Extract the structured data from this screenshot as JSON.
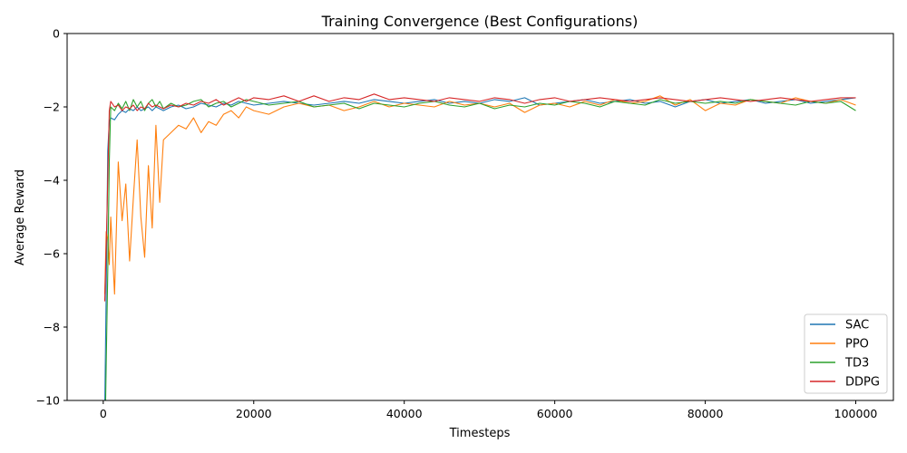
{
  "chart_data": {
    "type": "line",
    "title": "Training Convergence (Best Configurations)",
    "xlabel": "Timesteps",
    "ylabel": "Average Reward",
    "xlim": [
      -4800,
      105000
    ],
    "ylim": [
      -10,
      0
    ],
    "xticks": [
      0,
      20000,
      40000,
      60000,
      80000,
      100000
    ],
    "yticks": [
      -10,
      -8,
      -6,
      -4,
      -2,
      0
    ],
    "grid": false,
    "legend": "lower-right",
    "x": [
      200,
      400,
      600,
      800,
      1000,
      1500,
      2000,
      2500,
      3000,
      3500,
      4000,
      4500,
      5000,
      5500,
      6000,
      6500,
      7000,
      7500,
      8000,
      9000,
      10000,
      11000,
      12000,
      13000,
      14000,
      15000,
      16000,
      17000,
      18000,
      19000,
      20000,
      22000,
      24000,
      26000,
      28000,
      30000,
      32000,
      34000,
      36000,
      38000,
      40000,
      42000,
      44000,
      46000,
      48000,
      50000,
      52000,
      54000,
      56000,
      58000,
      60000,
      62000,
      64000,
      66000,
      68000,
      70000,
      72000,
      74000,
      76000,
      78000,
      80000,
      82000,
      84000,
      86000,
      88000,
      90000,
      92000,
      94000,
      96000,
      98000,
      100000
    ],
    "series": [
      {
        "name": "SAC",
        "color": "#1f77b4",
        "values": [
          -10.2,
          -7.0,
          -3.2,
          -2.4,
          -2.3,
          -2.35,
          -2.2,
          -2.1,
          -2.15,
          -2.05,
          -2.1,
          -2.0,
          -2.1,
          -2.05,
          -2.0,
          -2.1,
          -2.0,
          -2.05,
          -2.1,
          -2.0,
          -1.95,
          -2.05,
          -2.0,
          -1.9,
          -1.95,
          -2.0,
          -1.9,
          -1.95,
          -1.85,
          -1.9,
          -1.95,
          -1.9,
          -1.85,
          -1.9,
          -1.95,
          -1.9,
          -1.85,
          -1.9,
          -1.8,
          -1.85,
          -1.9,
          -1.85,
          -1.8,
          -1.9,
          -1.85,
          -1.9,
          -1.8,
          -1.85,
          -1.75,
          -1.95,
          -1.9,
          -1.85,
          -1.8,
          -1.9,
          -1.85,
          -1.8,
          -1.9,
          -1.85,
          -2.0,
          -1.85,
          -1.8,
          -1.9,
          -1.85,
          -1.8,
          -1.9,
          -1.85,
          -1.8,
          -1.9,
          -1.85,
          -1.8,
          -1.75
        ]
      },
      {
        "name": "PPO",
        "color": "#ff7f0e",
        "values": [
          -7.1,
          -5.4,
          -5.6,
          -6.3,
          -5.0,
          -7.1,
          -3.5,
          -5.1,
          -4.1,
          -6.2,
          -4.5,
          -2.9,
          -5.0,
          -6.1,
          -3.6,
          -5.3,
          -2.5,
          -4.6,
          -2.9,
          -2.7,
          -2.5,
          -2.6,
          -2.3,
          -2.7,
          -2.4,
          -2.5,
          -2.2,
          -2.1,
          -2.3,
          -2.0,
          -2.1,
          -2.2,
          -2.0,
          -1.9,
          -2.0,
          -1.95,
          -2.1,
          -2.0,
          -1.85,
          -2.0,
          -1.9,
          -1.95,
          -2.0,
          -1.85,
          -1.95,
          -1.9,
          -2.0,
          -1.9,
          -2.15,
          -1.95,
          -1.9,
          -2.0,
          -1.85,
          -1.95,
          -1.8,
          -1.9,
          -1.85,
          -1.7,
          -1.95,
          -1.8,
          -2.1,
          -1.9,
          -1.95,
          -1.8,
          -1.85,
          -1.9,
          -1.75,
          -1.85,
          -1.9,
          -1.8,
          -1.95
        ]
      },
      {
        "name": "TD3",
        "color": "#2ca02c",
        "values": [
          -11.5,
          -9.0,
          -6.5,
          -3.5,
          -2.0,
          -2.1,
          -1.9,
          -2.05,
          -1.85,
          -2.1,
          -1.8,
          -2.0,
          -1.85,
          -2.1,
          -1.9,
          -1.8,
          -2.0,
          -1.85,
          -2.05,
          -1.9,
          -2.0,
          -1.95,
          -1.85,
          -1.8,
          -2.0,
          -1.9,
          -1.85,
          -2.0,
          -1.9,
          -1.8,
          -1.85,
          -1.95,
          -1.9,
          -1.85,
          -2.0,
          -1.95,
          -1.9,
          -2.05,
          -1.9,
          -1.95,
          -2.0,
          -1.9,
          -1.85,
          -1.95,
          -2.0,
          -1.9,
          -2.05,
          -1.95,
          -2.0,
          -1.9,
          -1.95,
          -1.85,
          -1.9,
          -2.0,
          -1.85,
          -1.9,
          -1.95,
          -1.8,
          -1.9,
          -1.85,
          -1.9,
          -1.85,
          -1.9,
          -1.8,
          -1.85,
          -1.9,
          -1.95,
          -1.85,
          -1.9,
          -1.85,
          -2.1
        ]
      },
      {
        "name": "DDPG",
        "color": "#d62728",
        "values": [
          -7.3,
          -5.8,
          -4.0,
          -2.1,
          -1.85,
          -2.0,
          -1.95,
          -2.1,
          -2.0,
          -2.05,
          -1.95,
          -2.1,
          -2.0,
          -2.05,
          -1.9,
          -2.0,
          -1.95,
          -2.0,
          -2.05,
          -1.95,
          -2.0,
          -1.9,
          -1.95,
          -1.85,
          -1.9,
          -1.8,
          -1.95,
          -1.85,
          -1.75,
          -1.85,
          -1.75,
          -1.8,
          -1.7,
          -1.85,
          -1.7,
          -1.85,
          -1.75,
          -1.8,
          -1.65,
          -1.8,
          -1.75,
          -1.8,
          -1.85,
          -1.75,
          -1.8,
          -1.85,
          -1.75,
          -1.8,
          -1.9,
          -1.8,
          -1.75,
          -1.85,
          -1.8,
          -1.75,
          -1.8,
          -1.85,
          -1.8,
          -1.75,
          -1.8,
          -1.85,
          -1.8,
          -1.75,
          -1.8,
          -1.85,
          -1.8,
          -1.75,
          -1.8,
          -1.85,
          -1.8,
          -1.75,
          -1.75
        ]
      }
    ]
  }
}
